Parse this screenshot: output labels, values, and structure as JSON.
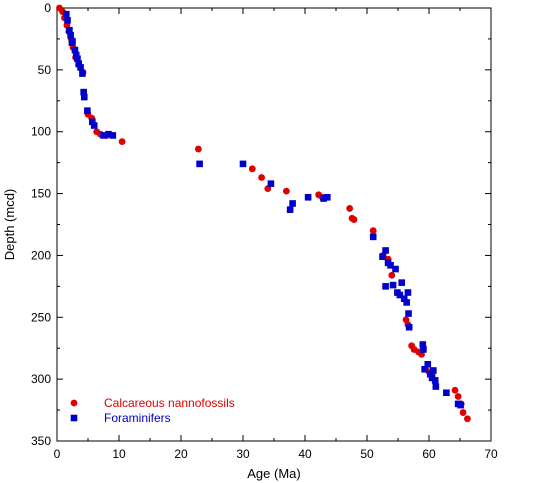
{
  "chart_data": {
    "type": "scatter",
    "title": "",
    "xlabel": "Age (Ma)",
    "ylabel": "Depth (mcd)",
    "xlim": [
      0,
      70
    ],
    "ylim": [
      0,
      350
    ],
    "y_inverted": true,
    "xticks": [
      0,
      10,
      20,
      30,
      40,
      50,
      60,
      70
    ],
    "yticks": [
      0,
      50,
      100,
      150,
      200,
      250,
      300,
      350
    ],
    "grid": false,
    "legend_position": "bottom-left",
    "series": [
      {
        "name": "Calcareous nannofossils",
        "marker": "circle",
        "color": "#e00000",
        "points": [
          [
            0.4,
            0
          ],
          [
            0.9,
            3
          ],
          [
            1.2,
            8
          ],
          [
            1.6,
            14
          ],
          [
            1.9,
            19
          ],
          [
            2.3,
            25
          ],
          [
            2.6,
            32
          ],
          [
            3.0,
            40
          ],
          [
            3.5,
            46
          ],
          [
            4.2,
            52
          ],
          [
            5.0,
            86
          ],
          [
            5.6,
            89
          ],
          [
            6.4,
            100
          ],
          [
            7.0,
            102
          ],
          [
            8.0,
            103
          ],
          [
            10.5,
            108
          ],
          [
            22.8,
            114
          ],
          [
            31.5,
            130
          ],
          [
            33.0,
            137
          ],
          [
            34.0,
            146
          ],
          [
            37.0,
            148
          ],
          [
            42.2,
            151
          ],
          [
            42.8,
            153
          ],
          [
            47.2,
            162
          ],
          [
            47.6,
            170
          ],
          [
            47.9,
            171
          ],
          [
            51.0,
            180
          ],
          [
            52.6,
            200
          ],
          [
            53.4,
            203
          ],
          [
            54.0,
            216
          ],
          [
            56.3,
            252
          ],
          [
            56.6,
            256
          ],
          [
            57.2,
            273
          ],
          [
            57.6,
            276
          ],
          [
            58.3,
            278
          ],
          [
            58.8,
            280
          ],
          [
            59.4,
            292
          ],
          [
            60.0,
            294
          ],
          [
            60.5,
            296
          ],
          [
            64.2,
            309
          ],
          [
            64.7,
            314
          ],
          [
            65.2,
            320
          ],
          [
            65.5,
            327
          ],
          [
            66.2,
            332
          ]
        ]
      },
      {
        "name": "Foraminifers",
        "marker": "square",
        "color": "#0000cc",
        "points": [
          [
            1.5,
            5
          ],
          [
            1.7,
            10
          ],
          [
            2.0,
            18
          ],
          [
            2.2,
            22
          ],
          [
            2.4,
            28
          ],
          [
            2.5,
            27
          ],
          [
            2.9,
            34
          ],
          [
            3.1,
            38
          ],
          [
            3.3,
            41
          ],
          [
            3.5,
            45
          ],
          [
            3.8,
            48
          ],
          [
            4.1,
            53
          ],
          [
            4.3,
            68
          ],
          [
            4.4,
            72
          ],
          [
            4.9,
            83
          ],
          [
            5.7,
            92
          ],
          [
            6.0,
            95
          ],
          [
            7.5,
            103
          ],
          [
            8.3,
            102
          ],
          [
            9.0,
            103
          ],
          [
            23.0,
            126
          ],
          [
            30.0,
            126
          ],
          [
            34.5,
            142
          ],
          [
            37.6,
            163
          ],
          [
            38.0,
            158
          ],
          [
            40.5,
            153
          ],
          [
            43.0,
            154
          ],
          [
            43.6,
            153
          ],
          [
            51.0,
            185
          ],
          [
            52.5,
            201
          ],
          [
            53.0,
            196
          ],
          [
            53.4,
            206
          ],
          [
            53.8,
            208
          ],
          [
            53.0,
            225
          ],
          [
            54.2,
            224
          ],
          [
            54.6,
            211
          ],
          [
            54.9,
            230
          ],
          [
            55.3,
            232
          ],
          [
            55.6,
            222
          ],
          [
            56.0,
            235
          ],
          [
            56.4,
            238
          ],
          [
            56.6,
            230
          ],
          [
            56.7,
            247
          ],
          [
            56.8,
            258
          ],
          [
            59.0,
            272
          ],
          [
            59.1,
            276
          ],
          [
            59.3,
            292
          ],
          [
            59.8,
            288
          ],
          [
            60.2,
            296
          ],
          [
            60.5,
            299
          ],
          [
            60.7,
            293
          ],
          [
            61.0,
            301
          ],
          [
            61.1,
            306
          ],
          [
            62.8,
            311
          ],
          [
            64.7,
            320
          ],
          [
            65.1,
            321
          ]
        ]
      }
    ]
  }
}
